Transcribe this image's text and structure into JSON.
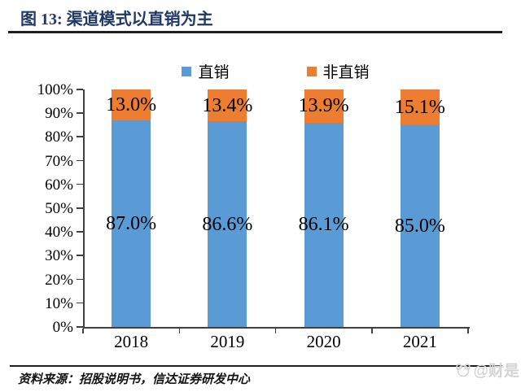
{
  "header": {
    "title": "图 13: 渠道模式以直销为主"
  },
  "footer": {
    "source": "资料来源：招股说明书，信达证券研发中心",
    "watermark": "@财是"
  },
  "colors": {
    "direct_blue": "#5B9BD5",
    "nondirect_orange": "#ED7D31",
    "title_navy": "#1F3864",
    "axis": "#404040"
  },
  "chart_data": {
    "type": "bar",
    "stacked": true,
    "title": "渠道模式以直销为主",
    "categories": [
      "2018",
      "2019",
      "2020",
      "2021"
    ],
    "series": [
      {
        "name": "直销",
        "color": "#5B9BD5",
        "values": [
          87.0,
          86.6,
          86.1,
          85.0
        ],
        "labels": [
          "87.0%",
          "86.6%",
          "86.1%",
          "85.0%"
        ]
      },
      {
        "name": "非直销",
        "color": "#ED7D31",
        "values": [
          13.0,
          13.4,
          13.9,
          15.1
        ],
        "labels": [
          "13.0%",
          "13.4%",
          "13.9%",
          "15.1%"
        ]
      }
    ],
    "y_axis": {
      "min": 0,
      "max": 100,
      "step": 10,
      "tick_labels": [
        "0%",
        "10%",
        "20%",
        "30%",
        "40%",
        "50%",
        "60%",
        "70%",
        "80%",
        "90%",
        "100%"
      ]
    },
    "x_axis_label": "",
    "y_axis_label": "",
    "legend_position": "top-center",
    "grid": false
  }
}
